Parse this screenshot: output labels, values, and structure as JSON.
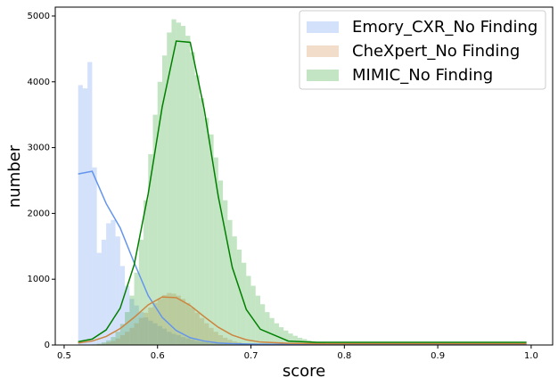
{
  "chart_data": {
    "type": "histogram",
    "xlabel": "score",
    "ylabel": "number",
    "legend": "upper right",
    "xlim": [
      0.4905,
      1.023
    ],
    "ylim": [
      0,
      5135
    ],
    "xticks": [
      0.5,
      0.6,
      0.7,
      0.8,
      0.9,
      {
        "value": 1,
        "label": "1.0"
      }
    ],
    "yticks": [
      0,
      1000,
      2000,
      3000,
      4000,
      5000
    ],
    "bins": [
      0.515,
      0.52,
      0.525,
      0.53,
      0.535,
      0.54,
      0.545,
      0.55,
      0.555,
      0.56,
      0.565,
      0.57,
      0.575,
      0.58,
      0.585,
      0.59,
      0.595,
      0.6,
      0.605,
      0.61,
      0.615,
      0.62,
      0.625,
      0.63,
      0.635,
      0.64,
      0.645,
      0.65,
      0.655,
      0.66,
      0.665,
      0.67,
      0.675,
      0.68,
      0.685,
      0.69,
      0.695,
      0.7,
      0.705,
      0.71,
      0.715,
      0.72,
      0.725,
      0.73,
      0.735,
      0.74,
      0.745,
      0.75,
      0.755,
      0.76,
      0.765,
      0.77,
      0.775,
      0.78,
      0.785,
      0.79,
      0.795,
      0.8
    ],
    "curve_x": [
      0.515,
      0.53,
      0.545,
      0.56,
      0.575,
      0.59,
      0.605,
      0.62,
      0.635,
      0.65,
      0.665,
      0.68,
      0.695,
      0.71,
      0.74,
      0.77,
      0.8,
      0.85,
      0.9,
      0.95,
      0.995
    ],
    "series": [
      {
        "name": "Emory_CXR_No Finding",
        "color": "#6495ed",
        "curve_color": "#6495ed",
        "values": [
          3950,
          3900,
          4300,
          2700,
          1400,
          1600,
          1850,
          1900,
          1650,
          1200,
          900,
          700,
          600,
          500,
          420,
          370,
          330,
          290,
          250,
          200,
          170,
          150,
          120,
          100,
          80,
          60,
          50,
          40,
          30,
          25,
          20,
          15,
          10,
          0,
          0,
          0,
          0,
          0,
          0,
          0,
          0,
          0,
          0,
          0,
          0,
          0,
          0,
          0,
          0,
          0,
          0,
          0,
          0,
          0,
          0,
          0,
          0
        ],
        "curve_values": [
          2600,
          2640,
          2150,
          1780,
          1250,
          750,
          420,
          220,
          110,
          60,
          30,
          20,
          15,
          12,
          10,
          10,
          10,
          10,
          10,
          10,
          10
        ]
      },
      {
        "name": "CheXpert_No Finding",
        "color": "#cd853f",
        "curve_color": "#cd853f",
        "values": [
          0,
          0,
          0,
          0,
          10,
          20,
          40,
          60,
          100,
          150,
          200,
          260,
          330,
          410,
          490,
          570,
          640,
          700,
          760,
          790,
          780,
          750,
          700,
          640,
          570,
          490,
          410,
          330,
          260,
          200,
          150,
          110,
          80,
          55,
          40,
          28,
          18,
          12,
          8,
          5,
          3,
          2,
          1,
          0,
          0,
          0,
          0,
          0,
          0,
          0,
          0,
          0,
          0,
          0,
          0,
          0,
          0
        ],
        "curve_values": [
          30,
          60,
          130,
          250,
          420,
          610,
          730,
          720,
          600,
          430,
          270,
          150,
          80,
          45,
          25,
          20,
          20,
          20,
          20,
          20,
          20
        ]
      },
      {
        "name": "MIMIC_No Finding",
        "color": "#2ca02c",
        "curve_color": "#008000",
        "values": [
          0,
          0,
          5,
          10,
          20,
          40,
          70,
          120,
          200,
          320,
          500,
          750,
          1100,
          1600,
          2200,
          2900,
          3500,
          4000,
          4400,
          4750,
          4950,
          4900,
          4850,
          4700,
          4450,
          4100,
          3750,
          3450,
          3200,
          2850,
          2500,
          2200,
          1900,
          1650,
          1450,
          1250,
          1050,
          900,
          750,
          620,
          500,
          410,
          330,
          270,
          220,
          175,
          140,
          110,
          90,
          70,
          55,
          45,
          35,
          27,
          20,
          15,
          10
        ],
        "curve_values": [
          50,
          90,
          230,
          560,
          1220,
          2300,
          3620,
          4620,
          4600,
          3580,
          2260,
          1180,
          540,
          240,
          60,
          40,
          40,
          40,
          40,
          40,
          40
        ]
      }
    ]
  }
}
